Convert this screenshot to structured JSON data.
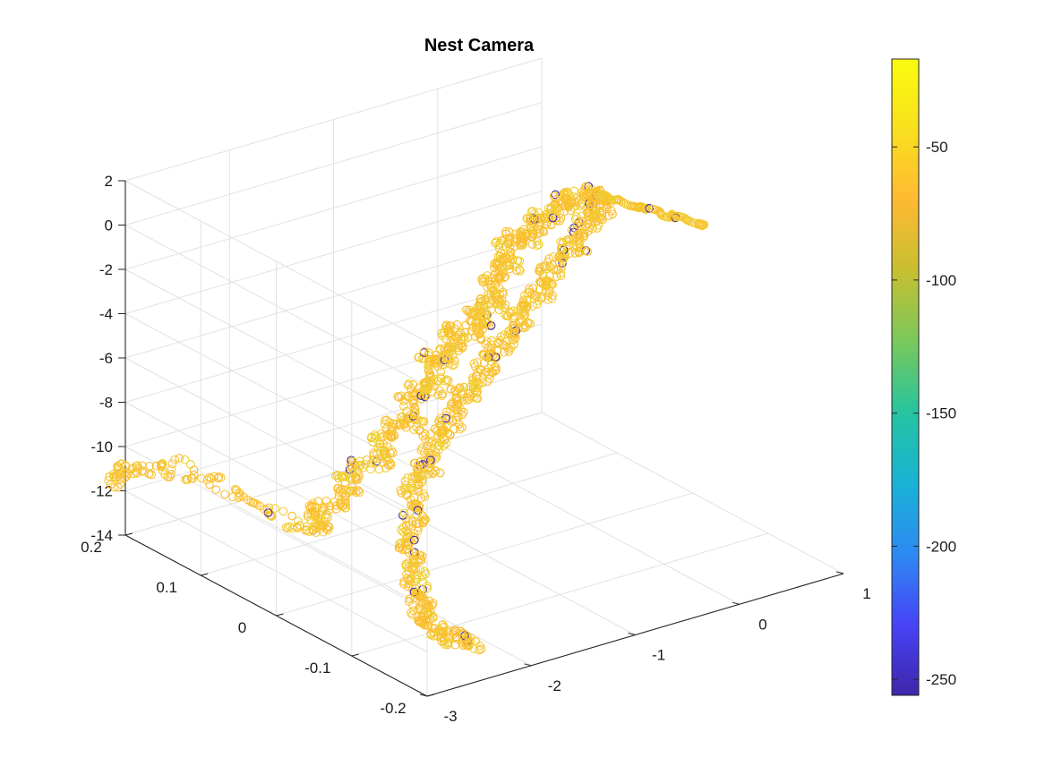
{
  "chart_data": {
    "type": "scatter3",
    "title": "Nest Camera",
    "xlabel": "",
    "ylabel": "",
    "zlabel": "",
    "grid": true,
    "x_range": [
      -3,
      1
    ],
    "y_range": [
      -0.2,
      0.2
    ],
    "z_range": [
      -14,
      2
    ],
    "x_ticks": [
      "-3",
      "-2",
      "-1",
      "0",
      "1"
    ],
    "y_ticks": [
      "0.2",
      "0.1",
      "0",
      "-0.1",
      "-0.2"
    ],
    "z_ticks": [
      "2",
      "0",
      "-2",
      "-4",
      "-6",
      "-8",
      "-10",
      "-12",
      "-14"
    ],
    "colorbar": {
      "range": [
        -256,
        -17
      ],
      "ticks": [
        "-50",
        "-100",
        "-150",
        "-200",
        "-250"
      ],
      "tick_values": [
        -50,
        -100,
        -150,
        -200,
        -250
      ],
      "colormap": "parula",
      "stops": [
        "#3e26a8",
        "#4743f8",
        "#2d8af2",
        "#19b2d6",
        "#26c4a0",
        "#79c85b",
        "#c7bf31",
        "#feb932",
        "#f9e01e",
        "#f9fb0e"
      ]
    },
    "marker": "open-circle",
    "series_path": [
      [
        -2.3,
        0.04,
        -12.0
      ],
      [
        -2.2,
        0.06,
        -11.5
      ],
      [
        -2.1,
        0.03,
        -10.5
      ],
      [
        -1.95,
        0.05,
        -9.8
      ],
      [
        -1.8,
        0.02,
        -9.0
      ],
      [
        -1.7,
        0.04,
        -8.2
      ],
      [
        -1.6,
        0.01,
        -7.4
      ],
      [
        -1.5,
        0.03,
        -6.6
      ],
      [
        -1.45,
        0.0,
        -5.8
      ],
      [
        -1.4,
        0.02,
        -5.0
      ],
      [
        -1.3,
        0.0,
        -4.6
      ],
      [
        -1.2,
        0.02,
        -4.0
      ],
      [
        -1.1,
        -0.01,
        -3.6
      ],
      [
        -1.0,
        0.01,
        -3.1
      ],
      [
        -0.95,
        -0.01,
        -2.5
      ],
      [
        -0.85,
        0.01,
        -1.8
      ],
      [
        -0.75,
        0.0,
        -1.2
      ],
      [
        -0.65,
        0.02,
        -0.7
      ],
      [
        -0.55,
        0.0,
        -0.3
      ],
      [
        -0.45,
        0.01,
        0.1
      ],
      [
        -0.3,
        0.0,
        0.5
      ],
      [
        -0.15,
        0.01,
        0.7
      ],
      [
        0.0,
        0.0,
        0.8
      ],
      [
        0.1,
        0.0,
        0.7
      ],
      [
        0.05,
        -0.01,
        0.2
      ],
      [
        -0.05,
        0.0,
        -0.4
      ],
      [
        -0.2,
        -0.01,
        -1.0
      ],
      [
        -0.35,
        0.0,
        -1.8
      ],
      [
        -0.5,
        -0.01,
        -2.6
      ],
      [
        -0.65,
        0.0,
        -3.4
      ],
      [
        -0.8,
        -0.01,
        -4.2
      ],
      [
        -0.95,
        0.0,
        -5.0
      ],
      [
        -1.1,
        -0.01,
        -5.8
      ],
      [
        -1.25,
        0.0,
        -6.6
      ],
      [
        -1.4,
        -0.01,
        -7.4
      ],
      [
        -1.5,
        0.0,
        -8.2
      ],
      [
        -1.6,
        -0.01,
        -9.0
      ],
      [
        -1.7,
        0.0,
        -9.8
      ],
      [
        -1.8,
        -0.02,
        -10.6
      ],
      [
        -1.95,
        -0.03,
        -11.4
      ],
      [
        -2.05,
        -0.05,
        -12.2
      ],
      [
        -2.15,
        -0.07,
        -12.8
      ],
      [
        -2.25,
        -0.09,
        -13.2
      ],
      [
        -2.3,
        -0.11,
        -13.6
      ],
      [
        -2.2,
        -0.13,
        -13.8
      ],
      [
        -2.1,
        -0.14,
        -13.9
      ]
    ],
    "series_branch": [
      [
        0.1,
        0.0,
        0.7
      ],
      [
        0.25,
        0.0,
        0.3
      ],
      [
        0.4,
        -0.01,
        -0.1
      ],
      [
        0.55,
        0.0,
        -0.5
      ],
      [
        0.7,
        -0.01,
        -0.9
      ],
      [
        0.85,
        0.0,
        -1.3
      ],
      [
        1.0,
        -0.01,
        -1.7
      ],
      [
        1.1,
        0.0,
        -2.0
      ]
    ],
    "series_left": [
      [
        -2.3,
        0.04,
        -12.0
      ],
      [
        -2.45,
        0.08,
        -11.6
      ],
      [
        -2.6,
        0.12,
        -11.0
      ],
      [
        -2.75,
        0.16,
        -10.6
      ],
      [
        -2.9,
        0.19,
        -10.9
      ],
      [
        -3.0,
        0.21,
        -11.4
      ],
      [
        -2.95,
        0.22,
        -12.0
      ]
    ]
  }
}
